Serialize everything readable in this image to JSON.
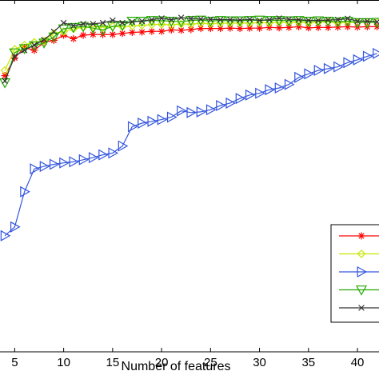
{
  "chart_data": {
    "type": "line",
    "xlabel": "Number of features",
    "ylabel": "",
    "xlim": [
      3.5,
      42.2
    ],
    "ylim": [
      0.0,
      1.0
    ],
    "xticks": [
      5,
      10,
      15,
      20,
      25,
      30,
      35,
      40
    ],
    "grid": false,
    "legend": {
      "placement": "bottom-right",
      "names_visible": false
    },
    "series": [
      {
        "color": "#ff0000",
        "marker": "asterisk",
        "x": [
          4,
          5,
          6,
          7,
          8,
          9,
          10,
          11,
          12,
          13,
          14,
          15,
          16,
          17,
          18,
          19,
          20,
          21,
          22,
          23,
          24,
          25,
          26,
          27,
          28,
          29,
          30,
          31,
          32,
          33,
          34,
          35,
          36,
          37,
          38,
          39,
          40,
          41,
          42
        ],
        "y": [
          0.785,
          0.835,
          0.865,
          0.857,
          0.88,
          0.885,
          0.9,
          0.89,
          0.9,
          0.902,
          0.902,
          0.902,
          0.905,
          0.908,
          0.909,
          0.911,
          0.911,
          0.915,
          0.914,
          0.916,
          0.919,
          0.919,
          0.919,
          0.92,
          0.919,
          0.92,
          0.92,
          0.922,
          0.921,
          0.922,
          0.924,
          0.921,
          0.922,
          0.922,
          0.923,
          0.924,
          0.923,
          0.924,
          0.924
        ]
      },
      {
        "color": "#c8e600",
        "marker": "diamond",
        "x": [
          4,
          5,
          6,
          7,
          8,
          9,
          10,
          11,
          12,
          13,
          14,
          15,
          16,
          17,
          18,
          19,
          20,
          21,
          22,
          23,
          24,
          25,
          26,
          27,
          28,
          29,
          30,
          31,
          32,
          33,
          34,
          35,
          36,
          37,
          38,
          39,
          40,
          41,
          42
        ],
        "y": [
          0.8,
          0.86,
          0.872,
          0.88,
          0.884,
          0.905,
          0.91,
          0.918,
          0.922,
          0.924,
          0.922,
          0.925,
          0.924,
          0.926,
          0.928,
          0.93,
          0.931,
          0.929,
          0.932,
          0.931,
          0.934,
          0.933,
          0.934,
          0.934,
          0.935,
          0.934,
          0.936,
          0.935,
          0.937,
          0.936,
          0.937,
          0.935,
          0.937,
          0.938,
          0.935,
          0.937,
          0.936,
          0.937,
          0.937
        ]
      },
      {
        "color": "#3355dd",
        "marker": "triangle-right",
        "x": [
          4,
          5,
          6,
          7,
          8,
          9,
          10,
          11,
          12,
          13,
          14,
          15,
          16,
          17,
          18,
          19,
          20,
          21,
          22,
          23,
          24,
          25,
          26,
          27,
          28,
          29,
          30,
          31,
          32,
          33,
          34,
          35,
          36,
          37,
          38,
          39,
          40,
          41,
          42
        ],
        "y": [
          0.33,
          0.355,
          0.455,
          0.52,
          0.527,
          0.533,
          0.537,
          0.54,
          0.546,
          0.552,
          0.56,
          0.565,
          0.585,
          0.64,
          0.65,
          0.655,
          0.66,
          0.667,
          0.685,
          0.68,
          0.682,
          0.688,
          0.7,
          0.707,
          0.72,
          0.73,
          0.735,
          0.745,
          0.75,
          0.76,
          0.78,
          0.79,
          0.8,
          0.805,
          0.81,
          0.822,
          0.83,
          0.84,
          0.848
        ]
      },
      {
        "color": "#22aa00",
        "marker": "triangle-down",
        "x": [
          4,
          5,
          6,
          7,
          8,
          9,
          10,
          11,
          12,
          13,
          14,
          15,
          16,
          17,
          18,
          19,
          20,
          21,
          22,
          23,
          24,
          25,
          26,
          27,
          28,
          29,
          30,
          31,
          32,
          33,
          34,
          35,
          36,
          37,
          38,
          39,
          40,
          41,
          42
        ],
        "y": [
          0.765,
          0.85,
          0.862,
          0.87,
          0.878,
          0.895,
          0.918,
          0.922,
          0.925,
          0.92,
          0.915,
          0.925,
          0.928,
          0.94,
          0.94,
          0.942,
          0.941,
          0.94,
          0.938,
          0.942,
          0.943,
          0.94,
          0.942,
          0.941,
          0.941,
          0.942,
          0.943,
          0.942,
          0.942,
          0.941,
          0.942,
          0.94,
          0.941,
          0.94,
          0.938,
          0.94,
          0.936,
          0.936,
          0.937
        ]
      },
      {
        "color": "#333333",
        "marker": "x",
        "x": [
          4,
          5,
          6,
          7,
          8,
          9,
          10,
          11,
          12,
          13,
          14,
          15,
          16,
          17,
          18,
          19,
          20,
          21,
          22,
          23,
          24,
          25,
          26,
          27,
          28,
          29,
          30,
          31,
          32,
          33,
          34,
          35,
          36,
          37,
          38,
          39,
          40,
          41,
          42
        ],
        "y": [
          0.77,
          0.84,
          0.857,
          0.872,
          0.887,
          0.91,
          0.935,
          0.927,
          0.932,
          0.932,
          0.935,
          0.942,
          0.935,
          0.938,
          0.94,
          0.944,
          0.948,
          0.944,
          0.95,
          0.947,
          0.946,
          0.945,
          0.944,
          0.944,
          0.943,
          0.945,
          0.942,
          0.944,
          0.948,
          0.945,
          0.944,
          0.942,
          0.942,
          0.943,
          0.944,
          0.947,
          0.94,
          0.94,
          0.938
        ]
      }
    ]
  }
}
